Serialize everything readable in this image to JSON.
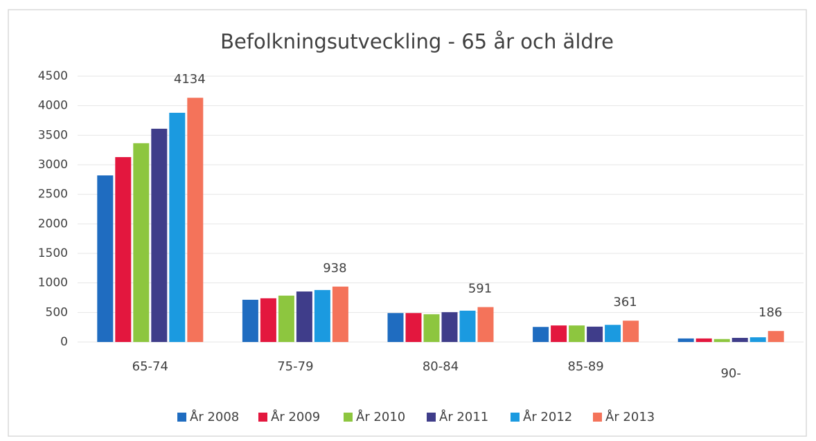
{
  "chart_data": {
    "type": "bar",
    "title": "Befolkningsutveckling - 65 år och äldre",
    "categories": [
      "65-74",
      "75-79",
      "80-84",
      "85-89",
      "90-"
    ],
    "series": [
      {
        "name": "År 2008",
        "color": "#1f6cc0",
        "values": [
          2820,
          715,
          490,
          255,
          60
        ]
      },
      {
        "name": "År 2009",
        "color": "#e3173e",
        "values": [
          3130,
          740,
          490,
          280,
          60
        ]
      },
      {
        "name": "År 2010",
        "color": "#8dc63f",
        "values": [
          3365,
          785,
          470,
          280,
          50
        ]
      },
      {
        "name": "År 2011",
        "color": "#3f3d8a",
        "values": [
          3610,
          855,
          505,
          260,
          70
        ]
      },
      {
        "name": "År 2012",
        "color": "#1b9ae0",
        "values": [
          3880,
          880,
          530,
          290,
          80
        ]
      },
      {
        "name": "År 2013",
        "color": "#f4735a",
        "values": [
          4134,
          938,
          591,
          361,
          186
        ]
      }
    ],
    "ylim": [
      0,
      4500
    ],
    "yticks": [
      0,
      500,
      1000,
      1500,
      2000,
      2500,
      3000,
      3500,
      4000,
      4500
    ],
    "grid": true,
    "legend": "bottom"
  }
}
